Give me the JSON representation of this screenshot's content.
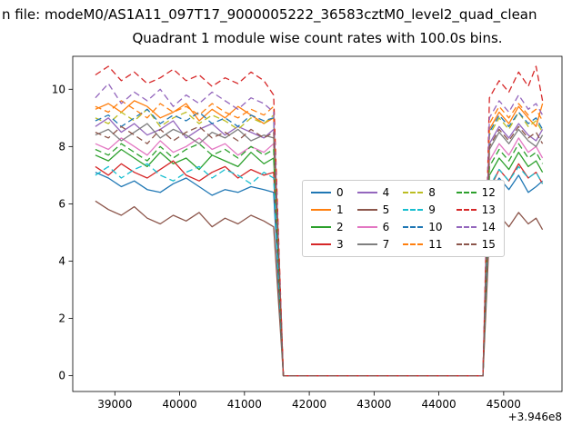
{
  "header": {
    "text": "n file: modeM0/AS1A11_097T17_9000005222_36583cztM0_level2_quad_clean"
  },
  "chart_data": {
    "type": "line",
    "title": "Quadrant 1 module wise count rates with 100.0s bins.",
    "xlabel": "",
    "ylabel": "",
    "x_offset_label": "+3.946e8",
    "xlim": [
      38350,
      45900
    ],
    "ylim": [
      -0.55,
      11.15
    ],
    "xticks": [
      39000,
      40000,
      41000,
      42000,
      43000,
      44000,
      45000
    ],
    "yticks": [
      0,
      2,
      4,
      6,
      8,
      10
    ],
    "grid": false,
    "legend_position": "center",
    "legend_columns": 4,
    "x": [
      38700,
      38900,
      39100,
      39300,
      39500,
      39700,
      39900,
      40100,
      40300,
      40500,
      40700,
      40900,
      41100,
      41300,
      41450,
      41600,
      42000,
      42500,
      43000,
      43500,
      44000,
      44500,
      44680,
      44780,
      44930,
      45080,
      45230,
      45380,
      45500,
      45600
    ],
    "series": [
      {
        "name": "0",
        "color": "#1f77b4",
        "dash": false,
        "y": [
          7.1,
          6.9,
          6.6,
          6.8,
          6.5,
          6.4,
          6.7,
          6.9,
          6.6,
          6.3,
          6.5,
          6.4,
          6.6,
          6.5,
          6.4,
          0,
          0,
          0,
          0,
          0,
          0,
          0,
          0,
          6.3,
          6.9,
          6.5,
          7.0,
          6.4,
          6.6,
          6.8
        ]
      },
      {
        "name": "1",
        "color": "#ff7f0e",
        "dash": false,
        "y": [
          9.3,
          9.5,
          9.2,
          9.6,
          9.4,
          9.0,
          9.2,
          9.5,
          8.9,
          9.3,
          9.0,
          9.4,
          9.1,
          8.8,
          9.0,
          0,
          0,
          0,
          0,
          0,
          0,
          0,
          0,
          8.6,
          9.2,
          8.8,
          9.4,
          9.0,
          8.7,
          9.5
        ]
      },
      {
        "name": "2",
        "color": "#2ca02c",
        "dash": false,
        "y": [
          7.7,
          7.5,
          7.9,
          7.6,
          7.3,
          7.8,
          7.4,
          7.6,
          7.2,
          7.7,
          7.5,
          7.3,
          7.8,
          7.4,
          7.6,
          0,
          0,
          0,
          0,
          0,
          0,
          0,
          0,
          7.0,
          7.6,
          7.2,
          7.8,
          7.3,
          7.5,
          7.1
        ]
      },
      {
        "name": "3",
        "color": "#d62728",
        "dash": false,
        "y": [
          7.3,
          7.0,
          7.4,
          7.1,
          6.9,
          7.2,
          7.5,
          7.0,
          6.8,
          7.1,
          7.3,
          6.9,
          7.2,
          7.0,
          7.1,
          0,
          0,
          0,
          0,
          0,
          0,
          0,
          0,
          6.5,
          7.2,
          6.8,
          7.4,
          6.9,
          7.1,
          6.7
        ]
      },
      {
        "name": "4",
        "color": "#9467bd",
        "dash": false,
        "y": [
          8.7,
          9.0,
          8.5,
          8.8,
          8.4,
          8.6,
          8.9,
          8.3,
          8.6,
          8.8,
          8.4,
          8.7,
          8.5,
          8.3,
          8.6,
          0,
          0,
          0,
          0,
          0,
          0,
          0,
          0,
          8.1,
          8.7,
          8.3,
          8.8,
          8.4,
          8.2,
          8.6
        ]
      },
      {
        "name": "5",
        "color": "#8c564b",
        "dash": false,
        "y": [
          6.1,
          5.8,
          5.6,
          5.9,
          5.5,
          5.3,
          5.6,
          5.4,
          5.7,
          5.2,
          5.5,
          5.3,
          5.6,
          5.4,
          5.2,
          0,
          0,
          0,
          0,
          0,
          0,
          0,
          0,
          5.0,
          5.6,
          5.2,
          5.7,
          5.3,
          5.5,
          5.1
        ]
      },
      {
        "name": "6",
        "color": "#e377c2",
        "dash": false,
        "y": [
          8.1,
          7.9,
          8.3,
          8.0,
          7.7,
          8.2,
          7.8,
          8.0,
          8.3,
          7.9,
          8.1,
          7.7,
          8.0,
          7.8,
          8.1,
          0,
          0,
          0,
          0,
          0,
          0,
          0,
          0,
          7.5,
          8.1,
          7.7,
          8.3,
          7.8,
          8.0,
          7.6
        ]
      },
      {
        "name": "7",
        "color": "#7f7f7f",
        "dash": false,
        "y": [
          8.4,
          8.6,
          8.2,
          8.5,
          8.8,
          8.3,
          8.6,
          8.4,
          8.1,
          8.5,
          8.3,
          8.6,
          8.2,
          8.4,
          8.3,
          0,
          0,
          0,
          0,
          0,
          0,
          0,
          0,
          7.9,
          8.5,
          8.1,
          8.6,
          8.2,
          8.0,
          8.4
        ]
      },
      {
        "name": "8",
        "color": "#bcbd22",
        "dash": true,
        "y": [
          9.0,
          8.8,
          9.2,
          8.9,
          9.3,
          8.7,
          9.0,
          9.2,
          8.8,
          9.1,
          8.9,
          8.6,
          9.0,
          8.8,
          9.1,
          0,
          0,
          0,
          0,
          0,
          0,
          0,
          0,
          8.4,
          9.0,
          8.6,
          9.2,
          8.7,
          8.9,
          8.5
        ]
      },
      {
        "name": "9",
        "color": "#17becf",
        "dash": true,
        "y": [
          7.0,
          7.3,
          6.9,
          7.2,
          7.4,
          7.0,
          6.8,
          7.1,
          7.3,
          6.9,
          7.2,
          7.0,
          6.7,
          7.1,
          6.9,
          0,
          0,
          0,
          0,
          0,
          0,
          0,
          0,
          6.6,
          7.2,
          6.8,
          7.3,
          6.9,
          7.1,
          6.7
        ]
      },
      {
        "name": "10",
        "color": "#1f77b4",
        "dash": true,
        "y": [
          8.9,
          9.1,
          8.7,
          9.0,
          9.3,
          8.8,
          9.1,
          8.9,
          9.2,
          8.8,
          9.0,
          8.7,
          9.1,
          8.9,
          9.0,
          0,
          0,
          0,
          0,
          0,
          0,
          0,
          0,
          8.5,
          9.1,
          8.7,
          9.2,
          8.8,
          9.0,
          8.6
        ]
      },
      {
        "name": "11",
        "color": "#ff7f0e",
        "dash": true,
        "y": [
          9.4,
          9.2,
          9.6,
          9.3,
          9.0,
          9.5,
          9.2,
          9.4,
          9.1,
          9.5,
          9.2,
          9.0,
          9.3,
          9.1,
          9.4,
          0,
          0,
          0,
          0,
          0,
          0,
          0,
          0,
          8.8,
          9.4,
          9.0,
          9.5,
          9.1,
          9.3,
          8.9
        ]
      },
      {
        "name": "12",
        "color": "#2ca02c",
        "dash": true,
        "y": [
          7.9,
          7.7,
          8.1,
          7.8,
          7.5,
          8.0,
          7.6,
          7.9,
          8.1,
          7.7,
          7.9,
          7.6,
          8.0,
          7.7,
          7.9,
          0,
          0,
          0,
          0,
          0,
          0,
          0,
          0,
          7.3,
          7.9,
          7.5,
          8.1,
          7.6,
          7.8,
          7.4
        ]
      },
      {
        "name": "13",
        "color": "#d62728",
        "dash": true,
        "y": [
          10.5,
          10.8,
          10.3,
          10.6,
          10.2,
          10.4,
          10.7,
          10.3,
          10.5,
          10.1,
          10.4,
          10.2,
          10.6,
          10.3,
          9.8,
          0,
          0,
          0,
          0,
          0,
          0,
          0,
          0,
          9.7,
          10.3,
          9.9,
          10.6,
          10.1,
          10.8,
          9.6
        ]
      },
      {
        "name": "14",
        "color": "#9467bd",
        "dash": true,
        "y": [
          9.7,
          10.2,
          9.5,
          9.9,
          9.6,
          10.0,
          9.4,
          9.8,
          9.5,
          9.9,
          9.6,
          9.3,
          9.7,
          9.5,
          9.2,
          0,
          0,
          0,
          0,
          0,
          0,
          0,
          0,
          9.0,
          9.6,
          9.2,
          9.8,
          9.3,
          9.5,
          9.1
        ]
      },
      {
        "name": "15",
        "color": "#8c564b",
        "dash": true,
        "y": [
          8.5,
          8.3,
          8.7,
          8.4,
          8.1,
          8.6,
          8.2,
          8.5,
          8.7,
          8.3,
          8.5,
          8.2,
          8.6,
          8.3,
          8.5,
          0,
          0,
          0,
          0,
          0,
          0,
          0,
          0,
          8.0,
          8.6,
          8.2,
          8.7,
          8.3,
          8.5,
          8.1
        ]
      }
    ]
  }
}
